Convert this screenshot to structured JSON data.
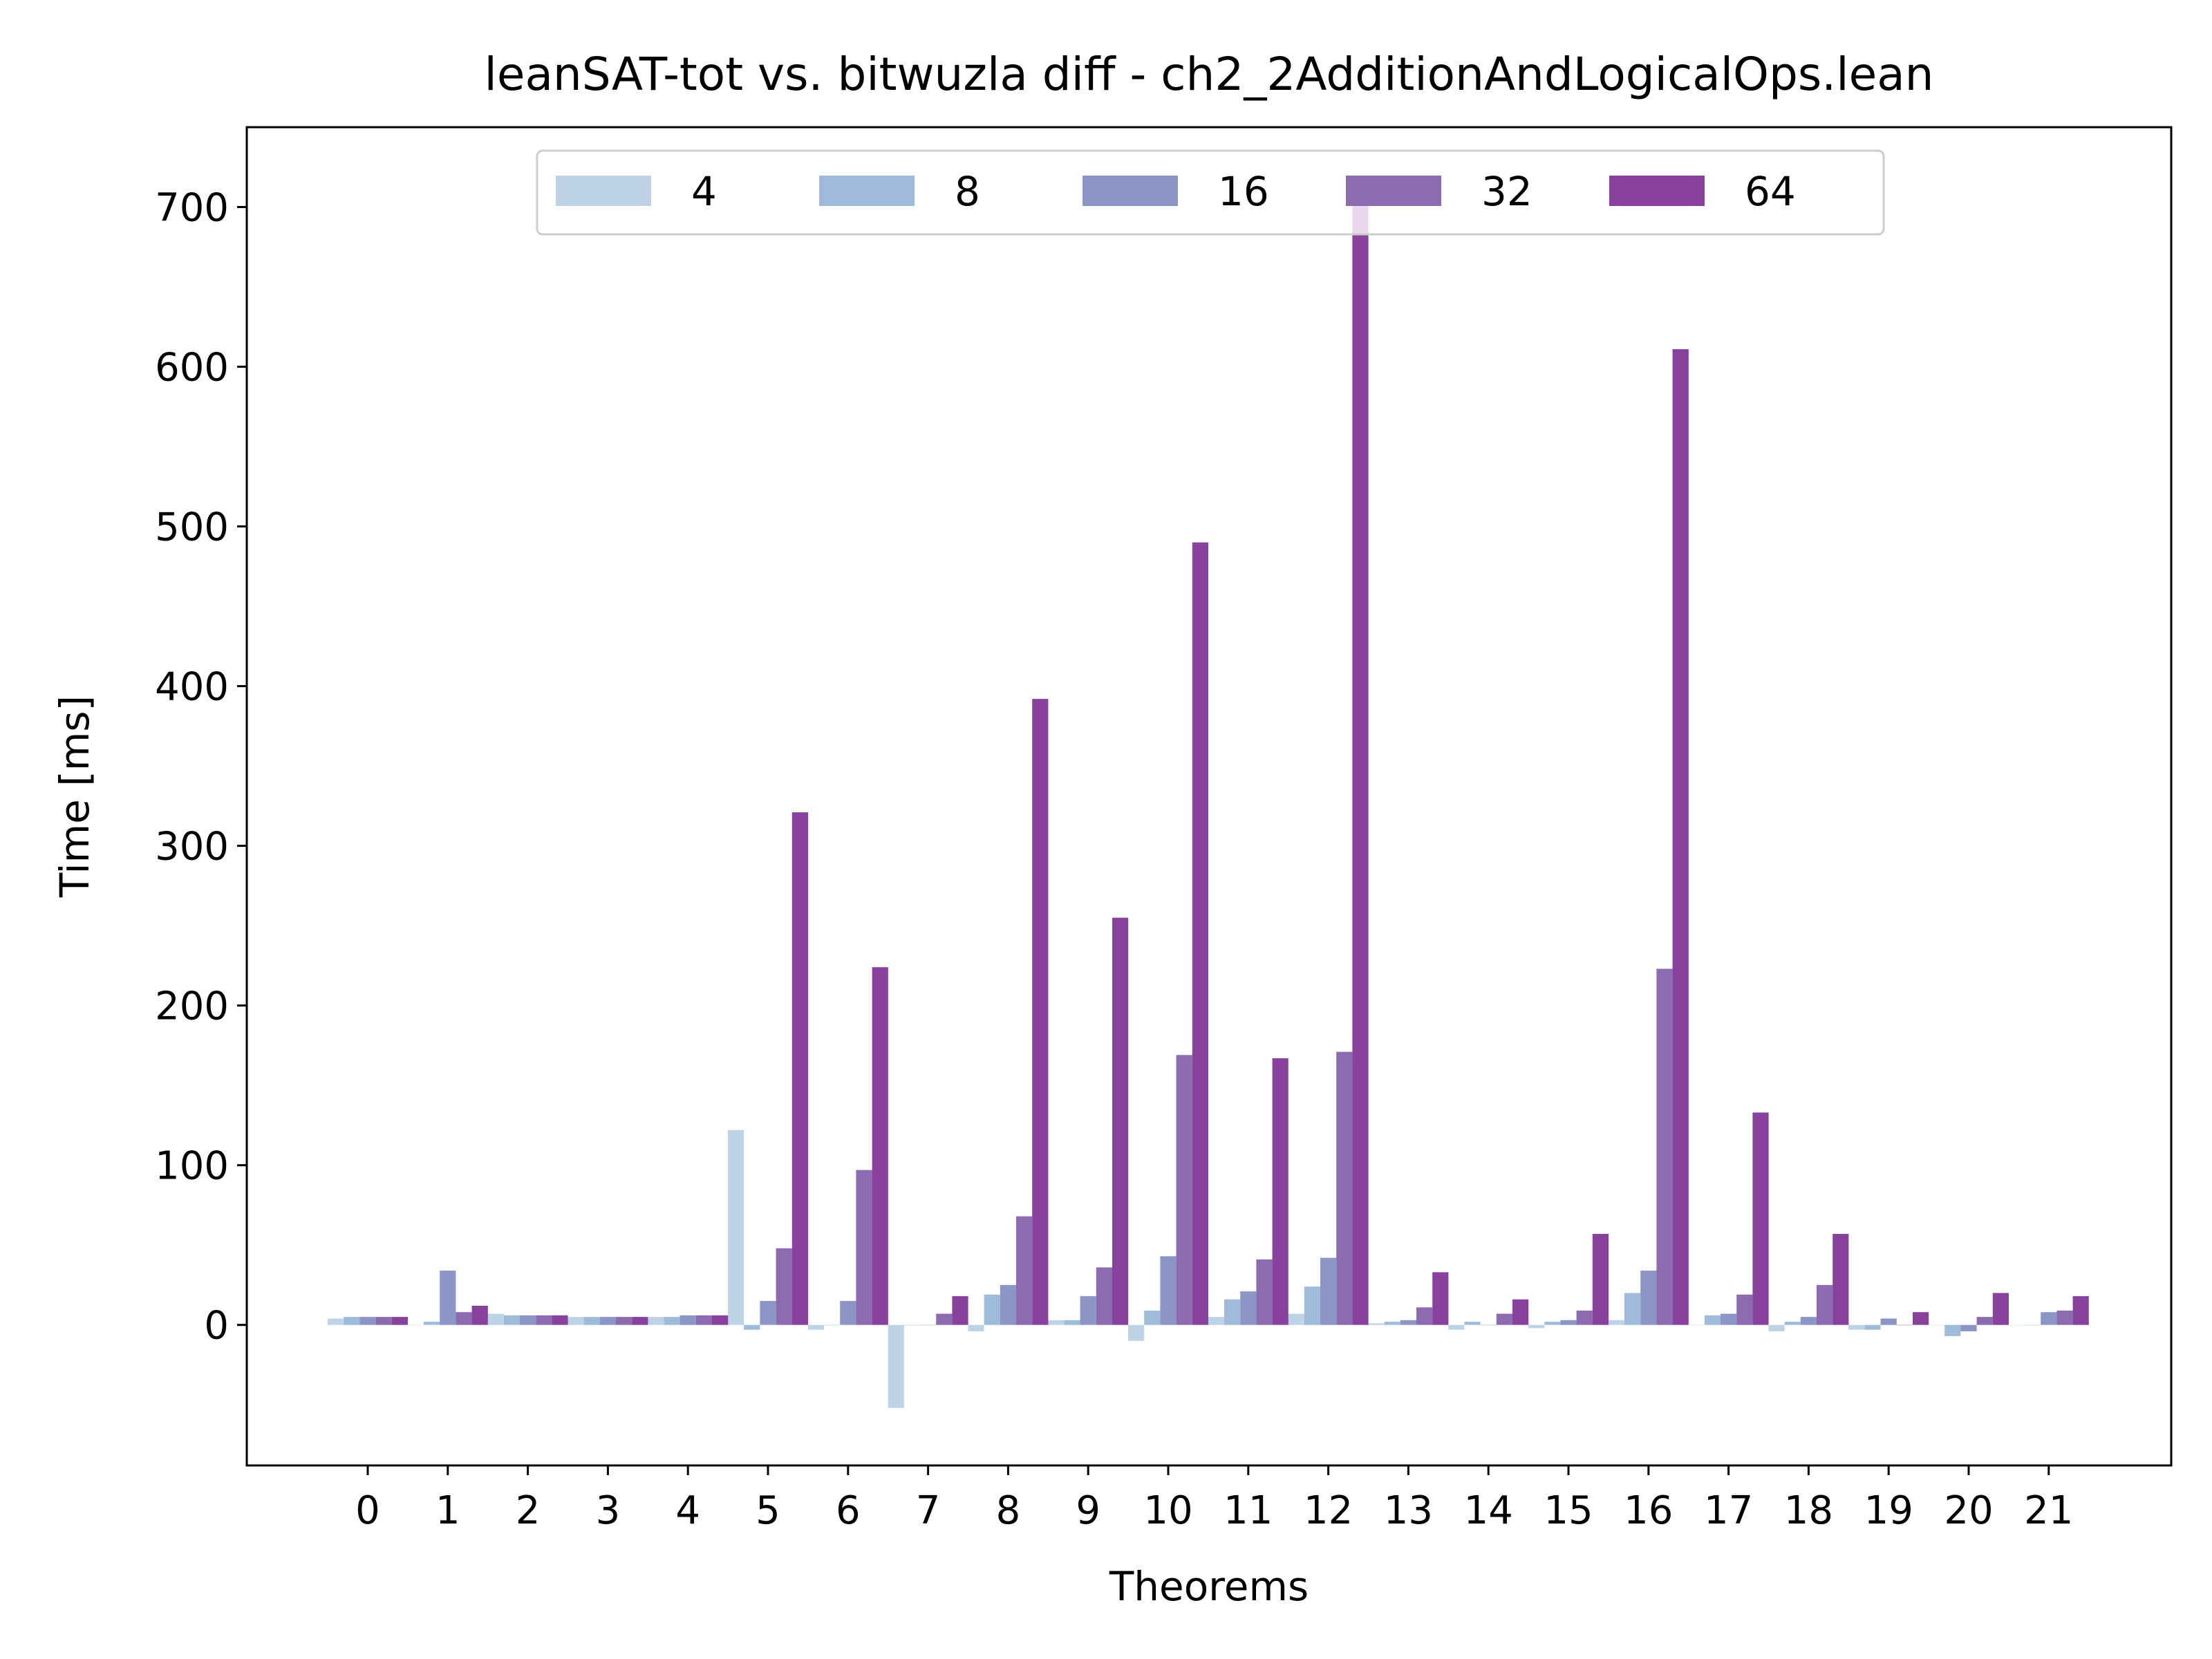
{
  "chart_data": {
    "type": "bar",
    "title": "leanSAT-tot vs. bitwuzla diff - ch2_2AdditionAndLogicalOps.lean",
    "xlabel": "Theorems",
    "ylabel": "Time [ms]",
    "ylim": [
      -88,
      750
    ],
    "yticks": [
      0,
      100,
      200,
      300,
      400,
      500,
      600,
      700
    ],
    "grid": false,
    "legend_position": "top-center",
    "categories": [
      "0",
      "1",
      "2",
      "3",
      "4",
      "5",
      "6",
      "7",
      "8",
      "9",
      "10",
      "11",
      "12",
      "13",
      "14",
      "15",
      "16",
      "17",
      "18",
      "19",
      "20",
      "21"
    ],
    "series": [
      {
        "name": "4",
        "color": "#bfd3e6",
        "values": [
          4,
          0,
          7,
          5,
          5,
          122,
          -3,
          -52,
          -4,
          3,
          -10,
          5,
          7,
          1,
          -3,
          -2,
          3,
          0,
          -4,
          -3,
          0,
          0
        ]
      },
      {
        "name": "8",
        "color": "#9ebcda",
        "values": [
          5,
          2,
          6,
          5,
          5,
          -3,
          0,
          0,
          19,
          3,
          9,
          16,
          24,
          2,
          2,
          2,
          20,
          6,
          2,
          -3,
          -7,
          0
        ]
      },
      {
        "name": "16",
        "color": "#8c96c6",
        "values": [
          5,
          34,
          6,
          5,
          6,
          15,
          15,
          0,
          25,
          18,
          43,
          21,
          42,
          3,
          0,
          3,
          34,
          7,
          5,
          4,
          -4,
          8
        ]
      },
      {
        "name": "32",
        "color": "#8c6bb1",
        "values": [
          5,
          8,
          6,
          5,
          6,
          48,
          97,
          7,
          68,
          36,
          169,
          41,
          171,
          11,
          7,
          9,
          223,
          19,
          25,
          0,
          5,
          9
        ]
      },
      {
        "name": "64",
        "color": "#88419d",
        "values": [
          5,
          12,
          6,
          5,
          6,
          321,
          224,
          18,
          392,
          255,
          490,
          167,
          712,
          33,
          16,
          57,
          611,
          133,
          57,
          8,
          20,
          18
        ]
      }
    ]
  }
}
